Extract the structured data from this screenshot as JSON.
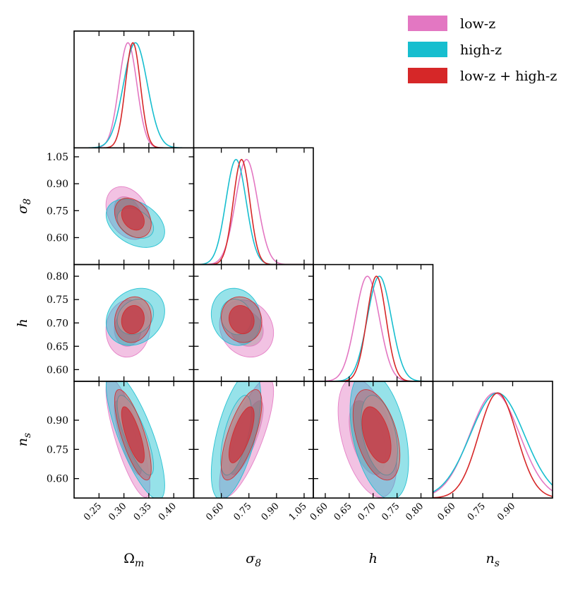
{
  "chart_data": {
    "type": "corner",
    "title": "",
    "params": [
      {
        "key": "om",
        "label": "Ω",
        "sub": "m",
        "range": [
          0.2,
          0.44
        ],
        "ticks": [
          0.25,
          0.3,
          0.35,
          0.4
        ],
        "tick_labels": [
          "0.25",
          "0.30",
          "0.35",
          "0.40"
        ]
      },
      {
        "key": "s8",
        "label": "σ",
        "sub": "8",
        "range": [
          0.45,
          1.1
        ],
        "ticks": [
          0.6,
          0.75,
          0.9,
          1.05
        ],
        "tick_labels": [
          "0.60",
          "0.75",
          "0.90",
          "1.05"
        ]
      },
      {
        "key": "h",
        "label": "h",
        "sub": "",
        "range": [
          0.575,
          0.825
        ],
        "ticks": [
          0.6,
          0.65,
          0.7,
          0.75,
          0.8
        ],
        "tick_labels": [
          "0.60",
          "0.65",
          "0.70",
          "0.75",
          "0.80"
        ]
      },
      {
        "key": "ns",
        "label": "n",
        "sub": "s",
        "range": [
          0.5,
          1.1
        ],
        "ticks": [
          0.6,
          0.75,
          0.9
        ],
        "tick_labels": [
          "0.60",
          "0.75",
          "0.90"
        ]
      }
    ],
    "series": [
      {
        "name": "low-z",
        "color": "#e377c2",
        "inner_color": "#c9a6b8",
        "mean": {
          "om": 0.308,
          "s8": 0.737,
          "h": 0.688,
          "ns": 0.81
        },
        "sd": {
          "om": 0.018,
          "s8": 0.06,
          "h": 0.025,
          "ns": 0.125
        },
        "corr": {
          "s8|om": -0.3,
          "h|om": 0.05,
          "h|s8": -0.15,
          "ns|om": -0.8,
          "ns|s8": 0.78,
          "ns|h": -0.45
        }
      },
      {
        "name": "high-z",
        "color": "#17becf",
        "inner_color": "#a8c4ce",
        "mean": {
          "om": 0.323,
          "s8": 0.68,
          "h": 0.713,
          "ns": 0.823
        },
        "sd": {
          "om": 0.024,
          "s8": 0.055,
          "h": 0.025,
          "ns": 0.135
        },
        "corr": {
          "s8|om": -0.35,
          "h|om": 0.2,
          "h|s8": -0.1,
          "ns|om": -0.78,
          "ns|s8": 0.6,
          "ns|h": -0.4
        }
      },
      {
        "name": "low-z + high-z",
        "color": "#d62728",
        "inner_color": "#c33f4a",
        "mean": {
          "om": 0.318,
          "s8": 0.71,
          "h": 0.707,
          "ns": 0.825
        },
        "sd": {
          "om": 0.015,
          "s8": 0.045,
          "h": 0.02,
          "ns": 0.095
        },
        "corr": {
          "s8|om": -0.3,
          "h|om": 0.1,
          "h|s8": -0.1,
          "ns|om": -0.75,
          "ns|s8": 0.7,
          "ns|h": -0.45
        }
      }
    ],
    "legend": {
      "position": "top-right",
      "entries": [
        "low-z",
        "high-z",
        "low-z + high-z"
      ]
    },
    "contour_levels": [
      "68%",
      "95%"
    ]
  }
}
